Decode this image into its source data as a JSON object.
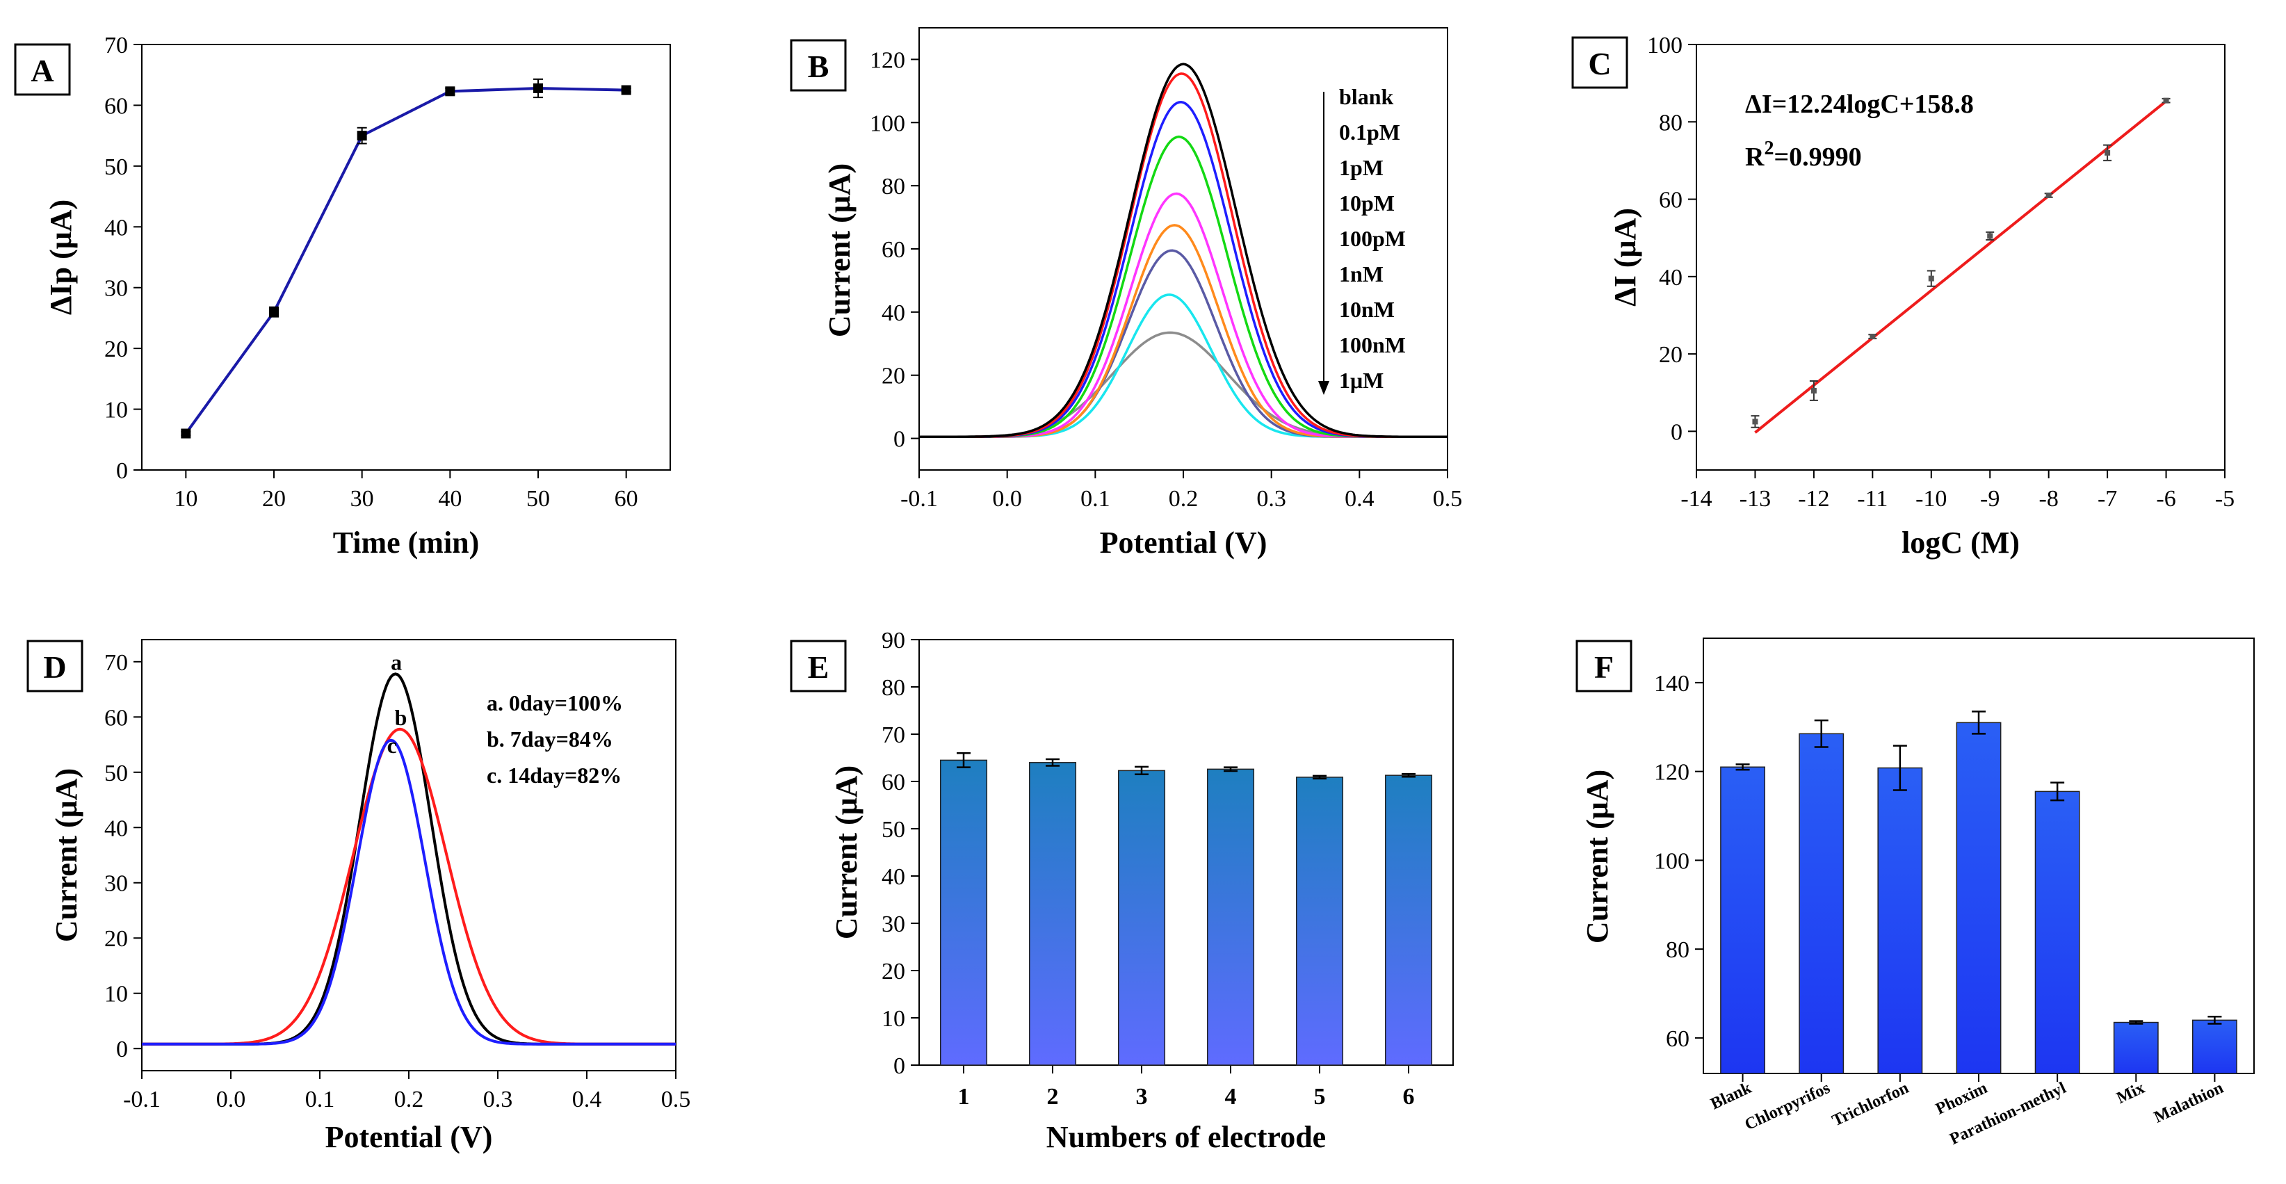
{
  "figure_title": "",
  "colors": {
    "axis": "#000000",
    "panelA_line": "#1a1aa8",
    "fitLine": "#ee1c1c",
    "barTop": "#1e7fc0",
    "barBottom": "#5f6bff",
    "barF": "#2748f0"
  },
  "chart_data": [
    {
      "id": "A",
      "type": "line",
      "panel_label": "A",
      "xlabel": "Time (min)",
      "ylabel": "ΔIp (μA)",
      "xlim": [
        5,
        65
      ],
      "ylim": [
        0,
        70
      ],
      "xticks": [
        "10",
        "20",
        "30",
        "40",
        "50",
        "60"
      ],
      "yticks": [
        "0",
        "10",
        "20",
        "30",
        "40",
        "50",
        "60",
        "70"
      ],
      "x": [
        10,
        20,
        30,
        40,
        50,
        60
      ],
      "y": [
        6.0,
        26.0,
        55.0,
        62.3,
        62.8,
        62.5
      ],
      "yerr": [
        0.3,
        0.8,
        1.3,
        0.5,
        1.5,
        0.3
      ]
    },
    {
      "id": "B",
      "type": "line",
      "panel_label": "B",
      "xlabel": "Potential (V)",
      "ylabel": "Current (μA)",
      "xlim": [
        -0.1,
        0.5
      ],
      "ylim": [
        -10,
        130
      ],
      "xticks": [
        "-0.1",
        "0.0",
        "0.1",
        "0.2",
        "0.3",
        "0.4",
        "0.5"
      ],
      "yticks": [
        "0",
        "20",
        "40",
        "60",
        "80",
        "100",
        "120"
      ],
      "legend": [
        "blank",
        "0.1pM",
        "1pM",
        "10pM",
        "100pM",
        "1nM",
        "10nM",
        "100nM",
        "1μM"
      ],
      "series": [
        {
          "name": "blank",
          "peak_x": 0.2,
          "peak_y": 118,
          "width": 0.06,
          "color": "#000000"
        },
        {
          "name": "0.1pM",
          "peak_x": 0.198,
          "peak_y": 115,
          "width": 0.058,
          "color": "#ff1c1c"
        },
        {
          "name": "1pM",
          "peak_x": 0.197,
          "peak_y": 106,
          "width": 0.057,
          "color": "#1e1eff"
        },
        {
          "name": "10pM",
          "peak_x": 0.195,
          "peak_y": 95,
          "width": 0.055,
          "color": "#13d913"
        },
        {
          "name": "100pM",
          "peak_x": 0.192,
          "peak_y": 77,
          "width": 0.052,
          "color": "#ff35ff"
        },
        {
          "name": "1nM",
          "peak_x": 0.19,
          "peak_y": 67,
          "width": 0.05,
          "color": "#ff8a1c"
        },
        {
          "name": "10nM",
          "peak_x": 0.187,
          "peak_y": 59,
          "width": 0.05,
          "color": "#5a5aa5"
        },
        {
          "name": "100nM",
          "peak_x": 0.184,
          "peak_y": 45,
          "width": 0.048,
          "color": "#19e6ee"
        },
        {
          "name": "1μM",
          "peak_x": 0.185,
          "peak_y": 33,
          "width": 0.065,
          "color": "#8c8c8c"
        }
      ]
    },
    {
      "id": "C",
      "type": "scatter",
      "panel_label": "C",
      "xlabel": "logC (M)",
      "ylabel": "ΔI (μA)",
      "xlim": [
        -14,
        -5
      ],
      "ylim": [
        -10,
        100
      ],
      "xticks": [
        "-14",
        "-13",
        "-12",
        "-11",
        "-10",
        "-9",
        "-8",
        "-7",
        "-6",
        "-5"
      ],
      "yticks": [
        "0",
        "20",
        "40",
        "60",
        "80",
        "100"
      ],
      "x": [
        -13,
        -12,
        -11,
        -10,
        -9,
        -8,
        -7,
        -6
      ],
      "y": [
        2.5,
        10.5,
        24.5,
        39.5,
        50.5,
        61.0,
        72.0,
        85.5
      ],
      "yerr": [
        1.5,
        2.5,
        0.5,
        2.0,
        1.0,
        0.5,
        2.0,
        0.5
      ],
      "fit": {
        "slope": 12.24,
        "intercept": 158.8,
        "x_range": [
          -13,
          -6
        ]
      },
      "equation": "ΔI=12.24logC+158.8",
      "r2_label": "R",
      "r2_sup": "2",
      "r2_value": "=0.9990"
    },
    {
      "id": "D",
      "type": "line",
      "panel_label": "D",
      "xlabel": "Potential (V)",
      "ylabel": "Current (μA)",
      "xlim": [
        -0.1,
        0.5
      ],
      "ylim": [
        -4,
        74
      ],
      "xticks": [
        "-0.1",
        "0.0",
        "0.1",
        "0.2",
        "0.3",
        "0.4",
        "0.5"
      ],
      "yticks": [
        "0",
        "10",
        "20",
        "30",
        "40",
        "50",
        "60",
        "70"
      ],
      "legend": [
        "a. 0day=100%",
        "b. 7day=84%",
        "c. 14day=82%"
      ],
      "curve_labels": [
        "a",
        "b",
        "c"
      ],
      "series": [
        {
          "name": "a",
          "peak_x": 0.185,
          "peak_y": 67,
          "width": 0.04,
          "color": "#000000"
        },
        {
          "name": "b",
          "peak_x": 0.19,
          "peak_y": 57,
          "width": 0.052,
          "color": "#ff1c1c"
        },
        {
          "name": "c",
          "peak_x": 0.18,
          "peak_y": 55,
          "width": 0.038,
          "color": "#1e1eff"
        }
      ]
    },
    {
      "id": "E",
      "type": "bar",
      "panel_label": "E",
      "xlabel": "Numbers of electrode",
      "ylabel": "Current (μA)",
      "ylim": [
        0,
        90
      ],
      "yticks": [
        "0",
        "10",
        "20",
        "30",
        "40",
        "50",
        "60",
        "70",
        "80",
        "90"
      ],
      "categories": [
        "1",
        "2",
        "3",
        "4",
        "5",
        "6"
      ],
      "values": [
        64.5,
        64.0,
        62.3,
        62.6,
        60.9,
        61.3
      ],
      "yerr": [
        1.5,
        0.7,
        0.8,
        0.4,
        0.3,
        0.3
      ]
    },
    {
      "id": "F",
      "type": "bar",
      "panel_label": "F",
      "xlabel": "",
      "ylabel": "Current (μA)",
      "ylim": [
        52,
        150
      ],
      "yticks": [
        "60",
        "80",
        "100",
        "120",
        "140"
      ],
      "categories": [
        "Blank",
        "Chlorpyrifos",
        "Trichlorfon",
        "Phoxim",
        "Parathion-methyl",
        "Mix",
        "Malathion"
      ],
      "values": [
        121.0,
        128.5,
        120.8,
        131.0,
        115.5,
        63.5,
        64.0
      ],
      "yerr": [
        0.6,
        3.0,
        5.0,
        2.5,
        2.0,
        0.3,
        0.8
      ]
    }
  ]
}
